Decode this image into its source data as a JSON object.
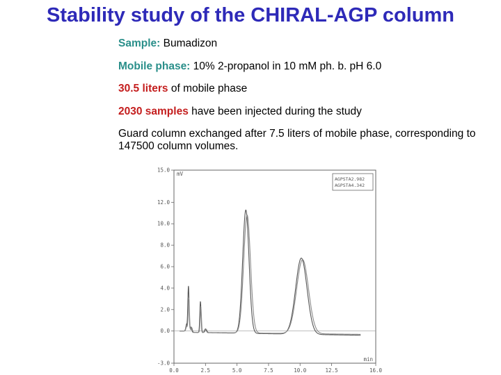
{
  "slide": {
    "title": "Stability study of the CHIRAL-AGP column",
    "sample_label": "Sample:",
    "sample_value": "Bumadizon",
    "mobile_label": "Mobile phase:",
    "mobile_value": "10% 2-propanol in 10 mM ph. b. pH 6.0",
    "liters_value": "30.5 liters",
    "liters_text": "of mobile phase",
    "samples_value": "2030 samples",
    "samples_text": "have been injected during the study",
    "guard_text": "Guard column exchanged after 7.5 liters of mobile phase, corresponding to 147500 column volumes."
  },
  "chart_data": {
    "type": "line",
    "xlabel": "min",
    "ylabel": "mV",
    "xlim": [
      0.0,
      16.0
    ],
    "ylim": [
      -3.0,
      15.0
    ],
    "x_ticks": [
      "0.0",
      "2.5",
      "5.0",
      "7.5",
      "10.0",
      "12.5",
      "16.0"
    ],
    "y_ticks": [
      "-3.0",
      "0.0",
      "2.0",
      "4.0",
      "6.0",
      "8.0",
      "10.0",
      "12.0",
      "15.0"
    ],
    "legend": {
      "position": "top-right",
      "entries": [
        "AGPSTA2.982",
        "AGPSTA4.342"
      ]
    },
    "series": [
      {
        "name": "AGPSTA2.982",
        "peaks": [
          {
            "t": 1.15,
            "h": 4.3,
            "w": 0.05
          },
          {
            "t": 1.0,
            "h": 0.6,
            "w": 0.06
          },
          {
            "t": 1.35,
            "h": 0.5,
            "w": 0.06
          },
          {
            "t": 2.1,
            "h": 2.9,
            "w": 0.05
          },
          {
            "t": 2.5,
            "h": 0.35,
            "w": 0.07
          },
          {
            "t": 5.7,
            "h": 11.5,
            "w": 0.25
          },
          {
            "t": 10.1,
            "h": 7.1,
            "w": 0.45
          }
        ]
      },
      {
        "name": "AGPSTA4.342",
        "peaks": [
          {
            "t": 1.18,
            "h": 3.2,
            "w": 0.05
          },
          {
            "t": 1.02,
            "h": 0.5,
            "w": 0.06
          },
          {
            "t": 1.4,
            "h": 0.45,
            "w": 0.06
          },
          {
            "t": 2.13,
            "h": 2.4,
            "w": 0.05
          },
          {
            "t": 2.55,
            "h": 0.3,
            "w": 0.07
          },
          {
            "t": 5.8,
            "h": 11.0,
            "w": 0.27
          },
          {
            "t": 10.2,
            "h": 6.9,
            "w": 0.47
          }
        ]
      }
    ]
  }
}
